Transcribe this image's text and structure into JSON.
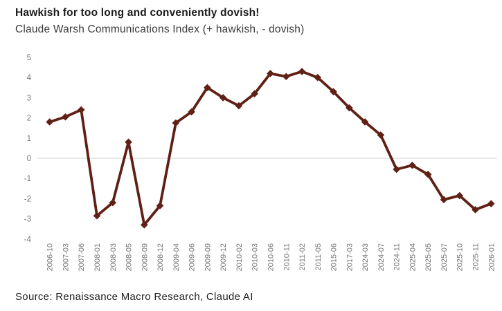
{
  "header": {
    "title": "Hawkish for too long and conveniently dovish!",
    "subtitle": "Claude Warsh Communications Index (+ hawkish, - dovish)"
  },
  "footer": {
    "source": "Source: Renaissance Macro Research, Claude AI"
  },
  "chart_data": {
    "type": "line",
    "title": "Hawkish for too long and conveniently dovish!",
    "subtitle": "Claude Warsh Communications Index (+ hawkish, - dovish)",
    "categories": [
      "2006-10",
      "2007-03",
      "2007-06",
      "2008-01",
      "2008-03",
      "2008-05",
      "2008-09",
      "2008-12",
      "2009-04",
      "2009-06",
      "2009-09",
      "2009-12",
      "2010-02",
      "2010-03",
      "2010-06",
      "2010-11",
      "2011-02",
      "2011-05",
      "2015-06",
      "2017-03",
      "2024-03",
      "2024-07",
      "2024-11",
      "2025-04",
      "2025-05",
      "2025-07",
      "2025-10",
      "2025-11",
      "2026-01"
    ],
    "values": [
      1.8,
      2.05,
      2.4,
      -2.85,
      -2.2,
      0.8,
      -3.3,
      -2.35,
      1.75,
      2.3,
      3.5,
      3.0,
      2.6,
      3.2,
      4.2,
      4.05,
      4.3,
      4.0,
      3.3,
      2.5,
      1.8,
      1.15,
      -0.55,
      -0.35,
      -0.8,
      -2.05,
      -1.85,
      -2.55,
      -2.25
    ],
    "ylim": [
      -4,
      5
    ],
    "yticks": [
      5,
      4,
      3,
      2,
      1,
      0,
      -1,
      -2,
      -3,
      -4
    ],
    "xlabel": "",
    "ylabel": "",
    "legend": "none",
    "grid": "zero-line-only",
    "marker": "diamond",
    "colors": {
      "line": "#5F2015",
      "gridline": "#D9D9D9",
      "axis_text": "#767676"
    }
  }
}
